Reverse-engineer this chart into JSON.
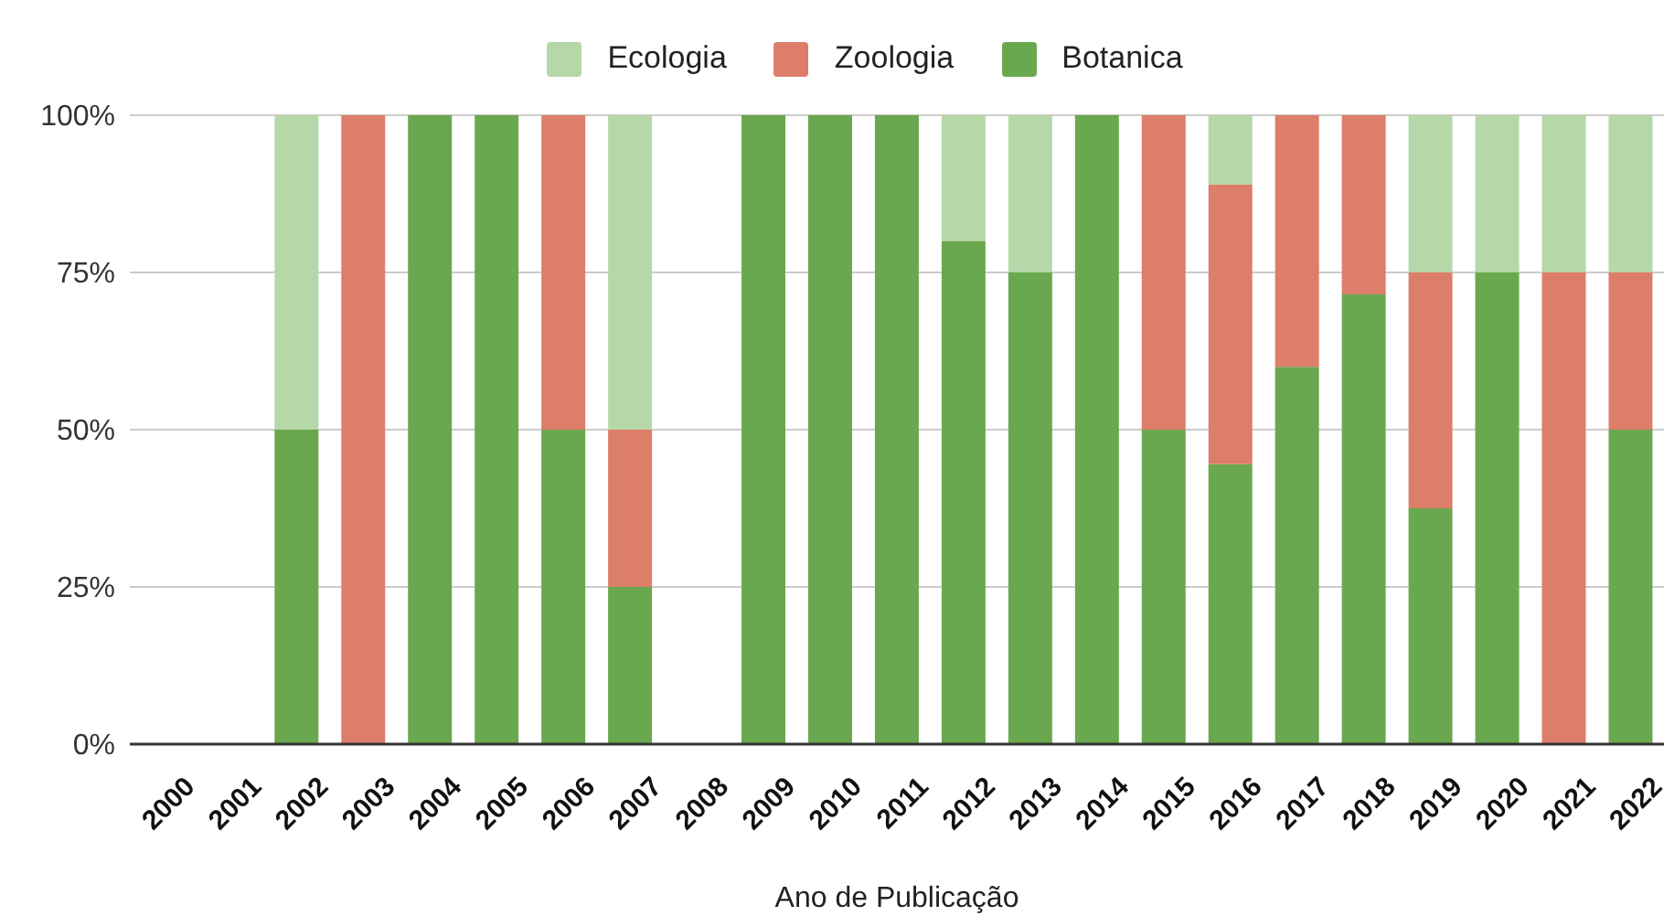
{
  "chart_data": {
    "type": "bar",
    "stacked": true,
    "xlabel": "Ano de Publicação",
    "categories": [
      "2000",
      "2001",
      "2002",
      "2003",
      "2004",
      "2005",
      "2006",
      "2007",
      "2008",
      "2009",
      "2010",
      "2011",
      "2012",
      "2013",
      "2014",
      "2015",
      "2016",
      "2017",
      "2018",
      "2019",
      "2020",
      "2021",
      "2022"
    ],
    "series": [
      {
        "name": "Botanica",
        "color": "#6aa84f",
        "values": [
          null,
          null,
          50,
          null,
          100,
          100,
          50,
          25,
          null,
          100,
          100,
          100,
          80,
          75,
          100,
          50,
          44.5,
          60,
          71.5,
          37.5,
          75,
          null,
          50
        ]
      },
      {
        "name": "Zoologia",
        "color": "#dd7e6b",
        "values": [
          null,
          null,
          null,
          100,
          null,
          null,
          50,
          25,
          null,
          null,
          null,
          null,
          null,
          null,
          null,
          50,
          44.5,
          40,
          28.5,
          37.5,
          null,
          75,
          25
        ]
      },
      {
        "name": "Ecologia",
        "color": "#b6d7a8",
        "values": [
          null,
          null,
          50,
          null,
          null,
          null,
          null,
          50,
          null,
          null,
          null,
          null,
          20,
          25,
          null,
          null,
          11,
          null,
          null,
          25,
          25,
          25,
          25
        ]
      }
    ],
    "ylim": [
      0,
      100
    ],
    "yticks": [
      {
        "value": 0,
        "label": "0%"
      },
      {
        "value": 25,
        "label": "25%"
      },
      {
        "value": 50,
        "label": "50%"
      },
      {
        "value": 75,
        "label": "75%"
      },
      {
        "value": 100,
        "label": "100%"
      }
    ],
    "grid": "y",
    "legend": "top"
  }
}
